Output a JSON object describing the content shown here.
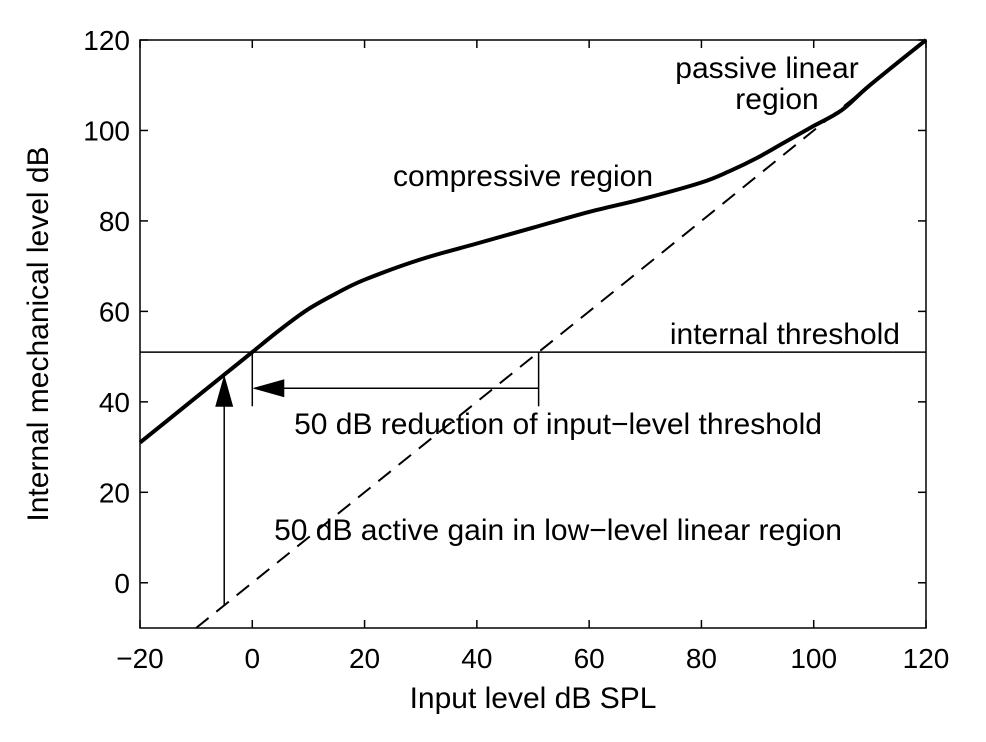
{
  "chart_data": {
    "type": "line",
    "title": "",
    "xlabel": "Input level dB SPL",
    "ylabel": "Internal mechanical level dB",
    "xlim": [
      -20,
      120
    ],
    "ylim": [
      -10,
      120
    ],
    "x_ticks": [
      -20,
      0,
      20,
      40,
      60,
      80,
      100,
      120
    ],
    "x_tick_labels": [
      "−20",
      "0",
      "20",
      "40",
      "60",
      "80",
      "100",
      "120"
    ],
    "y_ticks": [
      0,
      20,
      40,
      60,
      80,
      100,
      120
    ],
    "y_tick_labels": [
      "0",
      "20",
      "40",
      "60",
      "80",
      "100",
      "120"
    ],
    "grid": false,
    "legend": "none",
    "series": [
      {
        "style": "solid-thick",
        "x": [
          -20,
          -10,
          -5,
          0,
          5,
          10,
          15,
          20,
          30,
          40,
          50,
          60,
          70,
          80,
          85,
          90,
          95,
          100,
          105,
          110,
          120
        ],
        "y": [
          31,
          41,
          46,
          51,
          56,
          60.5,
          64,
          67,
          71.5,
          75,
          78.5,
          82,
          85,
          88.5,
          91,
          94,
          97.5,
          101,
          104.5,
          110,
          120
        ]
      },
      {
        "style": "dashed",
        "x": [
          -10,
          120
        ],
        "y": [
          -10,
          120
        ]
      }
    ],
    "threshold_line": {
      "y": 51
    },
    "arrows": [
      {
        "from": [
          51,
          43
        ],
        "to": [
          0,
          43
        ],
        "label": "50 dB reduction of input−level threshold"
      },
      {
        "from": [
          -5,
          -5
        ],
        "to": [
          -5,
          46
        ],
        "label": "50 dB active gain in low−level linear region"
      }
    ],
    "annotations": {
      "passive_line1": "passive linear",
      "passive_line2": "region",
      "compressive": "compressive region",
      "threshold": "internal threshold",
      "reduction": "50 dB reduction of input−level threshold",
      "gain": "50 dB active gain in low−level linear region"
    }
  }
}
